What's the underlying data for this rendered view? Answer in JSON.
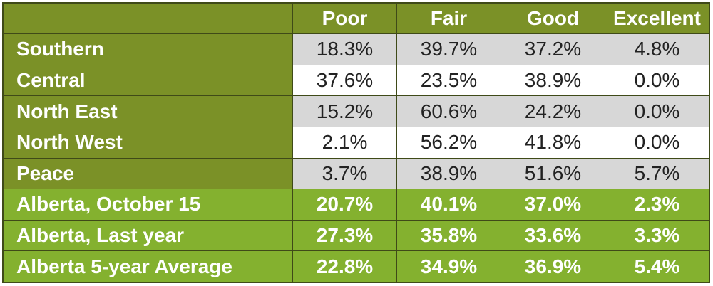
{
  "header": {
    "columns": [
      "Poor",
      "Fair",
      "Good",
      "Excellent"
    ]
  },
  "regions": [
    {
      "label": "Southern",
      "values": [
        "18.3%",
        "39.7%",
        "37.2%",
        "4.8%"
      ]
    },
    {
      "label": "Central",
      "values": [
        "37.6%",
        "23.5%",
        "38.9%",
        "0.0%"
      ]
    },
    {
      "label": "North East",
      "values": [
        "15.2%",
        "60.6%",
        "24.2%",
        "0.0%"
      ]
    },
    {
      "label": "North West",
      "values": [
        "2.1%",
        "56.2%",
        "41.8%",
        "0.0%"
      ]
    },
    {
      "label": "Peace",
      "values": [
        "3.7%",
        "38.9%",
        "51.6%",
        "5.7%"
      ]
    }
  ],
  "summaries": [
    {
      "label": "Alberta, October 15",
      "values": [
        "20.7%",
        "40.1%",
        "37.0%",
        "2.3%"
      ]
    },
    {
      "label": "Alberta, Last year",
      "values": [
        "27.3%",
        "35.8%",
        "33.6%",
        "3.3%"
      ]
    },
    {
      "label": "Alberta 5-year Average",
      "values": [
        "22.8%",
        "34.9%",
        "36.9%",
        "5.4%"
      ]
    }
  ],
  "colors": {
    "header_green": "#7b9127",
    "summary_green": "#84b12f",
    "row_shade": "#d7d7d7",
    "row_plain": "#ffffff"
  }
}
